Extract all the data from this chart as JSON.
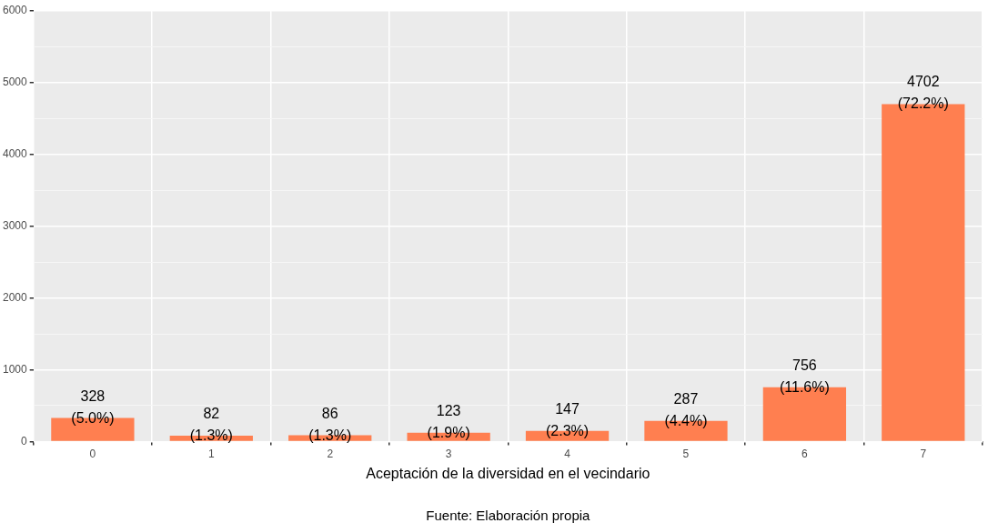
{
  "chart_data": {
    "type": "bar",
    "xlabel": "Aceptación de la diversidad en el vecindario",
    "categories": [
      "0",
      "1",
      "2",
      "3",
      "4",
      "5",
      "6",
      "7"
    ],
    "values": [
      328,
      82,
      86,
      123,
      147,
      287,
      756,
      4702
    ],
    "value_labels": [
      "328\n(5.0%)",
      "82\n(1.3%)",
      "86\n(1.3%)",
      "123\n(1.9%)",
      "147\n(2.3%)",
      "287\n(4.4%)",
      "756\n(11.6%)",
      "4702\n(72.2%)"
    ],
    "color": "#ff7f50",
    "ylim": [
      0,
      6000
    ],
    "yticks": [
      0,
      {
        "value": 500,
        "label": null
      },
      1000,
      {
        "value": 1500,
        "label": null
      },
      2000,
      {
        "value": 2500,
        "label": null
      },
      3000,
      {
        "value": 3500,
        "label": null
      },
      4000,
      {
        "value": 4500,
        "label": null
      },
      5000,
      {
        "value": 5500,
        "label": null
      },
      6000
    ],
    "grid": true,
    "legend": false,
    "annotations": [
      "Fuente: Elaboración propia"
    ]
  }
}
